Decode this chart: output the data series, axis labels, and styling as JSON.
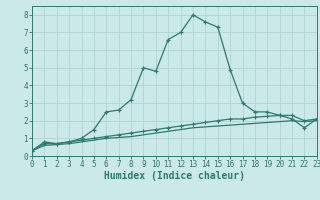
{
  "xlabel": "Humidex (Indice chaleur)",
  "x_values": [
    0,
    1,
    2,
    3,
    4,
    5,
    6,
    7,
    8,
    9,
    10,
    11,
    12,
    13,
    14,
    15,
    16,
    17,
    18,
    19,
    20,
    21,
    22,
    23
  ],
  "line1": [
    0.3,
    0.8,
    0.7,
    0.8,
    1.0,
    1.5,
    2.5,
    2.6,
    3.2,
    5.0,
    4.8,
    6.6,
    7.0,
    8.0,
    7.6,
    7.3,
    4.9,
    3.0,
    2.5,
    2.5,
    2.3,
    2.1,
    1.6,
    2.1
  ],
  "line2": [
    0.3,
    0.7,
    0.7,
    0.8,
    0.9,
    1.0,
    1.1,
    1.2,
    1.3,
    1.4,
    1.5,
    1.6,
    1.7,
    1.8,
    1.9,
    2.0,
    2.1,
    2.1,
    2.2,
    2.25,
    2.3,
    2.3,
    2.0,
    2.1
  ],
  "line3": [
    0.3,
    0.6,
    0.65,
    0.7,
    0.8,
    0.9,
    1.0,
    1.05,
    1.1,
    1.2,
    1.3,
    1.4,
    1.5,
    1.6,
    1.65,
    1.7,
    1.75,
    1.8,
    1.85,
    1.9,
    1.95,
    2.0,
    1.95,
    2.0
  ],
  "line_color": "#2d7a6e",
  "bg_color": "#cce9e9",
  "grid_color": "#afd4d4",
  "ylim": [
    0,
    8.5
  ],
  "xlim": [
    0,
    23
  ],
  "yticks": [
    0,
    1,
    2,
    3,
    4,
    5,
    6,
    7,
    8
  ],
  "xticks": [
    0,
    1,
    2,
    3,
    4,
    5,
    6,
    7,
    8,
    9,
    10,
    11,
    12,
    13,
    14,
    15,
    16,
    17,
    18,
    19,
    20,
    21,
    22,
    23
  ],
  "tick_fontsize": 5.5,
  "xlabel_fontsize": 7.0
}
